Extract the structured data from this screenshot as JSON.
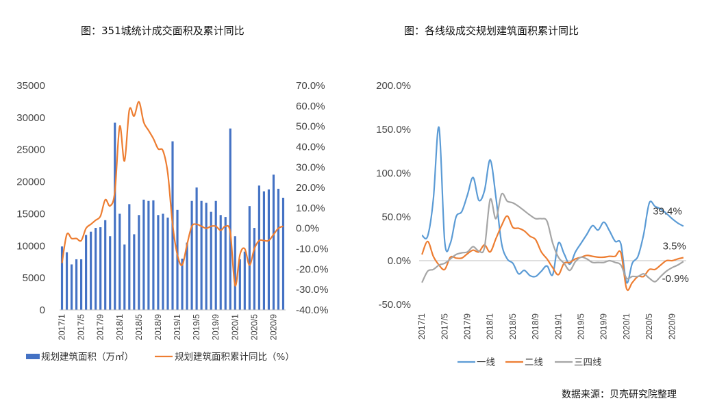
{
  "source_note": "数据来源：贝壳研究院整理",
  "chart_data": [
    {
      "type": "bar+line",
      "title": "图：351城统计成交面积及累计同比",
      "x": [
        "2017/1",
        "2017/2",
        "2017/3",
        "2017/4",
        "2017/5",
        "2017/6",
        "2017/7",
        "2017/8",
        "2017/9",
        "2017/10",
        "2017/11",
        "2017/12",
        "2018/1",
        "2018/2",
        "2018/3",
        "2018/4",
        "2018/5",
        "2018/6",
        "2018/7",
        "2018/8",
        "2018/9",
        "2018/10",
        "2018/11",
        "2018/12",
        "2019/1",
        "2019/2",
        "2019/3",
        "2019/4",
        "2019/5",
        "2019/6",
        "2019/7",
        "2019/8",
        "2019/9",
        "2019/10",
        "2019/11",
        "2019/12",
        "2020/1",
        "2020/2",
        "2020/3",
        "2020/4",
        "2020/5",
        "2020/6",
        "2020/7",
        "2020/8",
        "2020/9",
        "2020/10",
        "2020/11"
      ],
      "xtick_labels": [
        "2017/1",
        "2017/5",
        "2017/9",
        "2018/1",
        "2018/5",
        "2018/9",
        "2019/1",
        "2019/5",
        "2019/9",
        "2020/1",
        "2020/5",
        "2020/9"
      ],
      "y_left": {
        "ylim": [
          0,
          35000
        ],
        "ticks": [
          "0",
          "5000",
          "10000",
          "15000",
          "20000",
          "25000",
          "30000",
          "35000"
        ]
      },
      "y_right": {
        "ylim": [
          -40,
          70
        ],
        "ticks": [
          "-40.0%",
          "-30.0%",
          "-20.0%",
          "-10.0%",
          "0.0%",
          "10.0%",
          "20.0%",
          "30.0%",
          "40.0%",
          "50.0%",
          "60.0%",
          "70.0%"
        ]
      },
      "series": [
        {
          "name": "规划建筑面积（万㎡）",
          "kind": "bar",
          "axis": "left",
          "color": "#4472C4",
          "values": [
            9900,
            9000,
            7100,
            7900,
            7900,
            11700,
            12200,
            12800,
            12900,
            14000,
            11500,
            29200,
            15000,
            10200,
            16500,
            11800,
            14800,
            17200,
            17000,
            17100,
            14800,
            15000,
            14400,
            26300,
            15600,
            8000,
            10500,
            17000,
            19100,
            17000,
            16700,
            15300,
            17000,
            14800,
            14500,
            28300,
            11500,
            7900,
            9100,
            16200,
            12800,
            19400,
            18500,
            18800,
            21100,
            18900,
            17500
          ]
        },
        {
          "name": "规划建筑面积累计同比（%）",
          "kind": "line",
          "axis": "right",
          "color": "#ED7D31",
          "values": [
            -17,
            -3,
            -5,
            -5,
            -6,
            0,
            2,
            4,
            6,
            14,
            11,
            18,
            50,
            33,
            58,
            55,
            62,
            52,
            48,
            44,
            39,
            38,
            27,
            2,
            -13,
            -18,
            -8,
            1,
            2,
            1,
            0,
            1,
            1,
            -1,
            1,
            -2,
            -28,
            -13,
            -10,
            -18,
            -10,
            -6,
            -6,
            -6,
            -3,
            0,
            1
          ]
        }
      ],
      "legend": {
        "position": "bottom"
      }
    },
    {
      "type": "line",
      "title": "图：各线级成交规划建筑面积累计同比",
      "x": [
        "2017/1",
        "2017/2",
        "2017/3",
        "2017/4",
        "2017/5",
        "2017/6",
        "2017/7",
        "2017/8",
        "2017/9",
        "2017/10",
        "2017/11",
        "2017/12",
        "2018/1",
        "2018/2",
        "2018/3",
        "2018/4",
        "2018/5",
        "2018/6",
        "2018/7",
        "2018/8",
        "2018/9",
        "2018/10",
        "2018/11",
        "2018/12",
        "2019/1",
        "2019/2",
        "2019/3",
        "2019/4",
        "2019/5",
        "2019/6",
        "2019/7",
        "2019/8",
        "2019/9",
        "2019/10",
        "2019/11",
        "2019/12",
        "2020/1",
        "2020/2",
        "2020/3",
        "2020/4",
        "2020/5",
        "2020/6",
        "2020/7",
        "2020/8",
        "2020/9",
        "2020/10",
        "2020/11"
      ],
      "xtick_labels": [
        "2017/1",
        "2017/5",
        "2017/9",
        "2018/1",
        "2018/5",
        "2018/9",
        "2019/1",
        "2019/5",
        "2019/9",
        "2020/1",
        "2020/5",
        "2020/9"
      ],
      "ylim": [
        -50,
        200
      ],
      "yticks": [
        "-50.0%",
        "0.0%",
        "50.0%",
        "100.0%",
        "150.0%",
        "200.0%"
      ],
      "series": [
        {
          "name": "一线",
          "color": "#5B9BD5",
          "values": [
            29,
            28,
            70,
            152,
            22,
            20,
            50,
            56,
            75,
            95,
            69,
            80,
            115,
            73,
            20,
            2,
            -3,
            -15,
            -11,
            -17,
            -18,
            -12,
            -6,
            -16,
            20,
            8,
            -4,
            10,
            20,
            30,
            40,
            35,
            44,
            34,
            22,
            19,
            -25,
            -3,
            5,
            30,
            66,
            62,
            59,
            54,
            48,
            43,
            39.4
          ]
        },
        {
          "name": "二线",
          "color": "#ED7D31",
          "values": [
            7,
            22,
            5,
            -5,
            -10,
            4,
            3,
            3,
            8,
            12,
            10,
            18,
            10,
            25,
            40,
            51,
            38,
            37,
            34,
            28,
            24,
            10,
            2,
            -8,
            -16,
            -3,
            -2,
            2,
            4,
            6,
            5,
            4,
            4,
            5,
            5,
            9,
            -32,
            -25,
            -18,
            -18,
            -10,
            -10,
            -5,
            0,
            0,
            2,
            3.5
          ]
        },
        {
          "name": "三四线",
          "color": "#A5A5A5",
          "values": [
            -25,
            -12,
            -10,
            -5,
            -3,
            2,
            7,
            9,
            10,
            16,
            11,
            15,
            70,
            48,
            76,
            68,
            66,
            62,
            57,
            52,
            48,
            48,
            45,
            20,
            4,
            -3,
            -11,
            -1,
            4,
            2,
            -2,
            -2,
            -2,
            0,
            -2,
            -5,
            -20,
            -18,
            -18,
            -15,
            -20,
            -24,
            -18,
            -12,
            -8,
            -5,
            -0.9
          ]
        }
      ],
      "data_labels": [
        "39.4%",
        "3.5%",
        "-0.9%"
      ],
      "legend": {
        "position": "bottom"
      }
    }
  ]
}
